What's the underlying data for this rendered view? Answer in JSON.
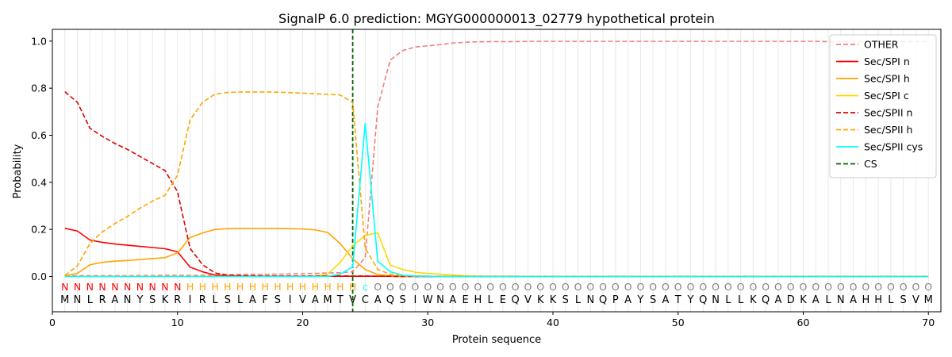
{
  "chart_data": {
    "type": "line",
    "title": "SignalP 6.0 prediction: MGYG000000013_02779 hypothetical protein",
    "xlabel": "Protein sequence",
    "ylabel": "Probability",
    "xlim": [
      0,
      71
    ],
    "ylim": [
      -0.15,
      1.05
    ],
    "xticks": [
      0,
      10,
      20,
      30,
      40,
      50,
      60,
      70
    ],
    "yticks": [
      0.0,
      0.2,
      0.4,
      0.6,
      0.8,
      1.0
    ],
    "ytick_labels": [
      "0.0",
      "0.2",
      "0.4",
      "0.6",
      "0.8",
      "1.0"
    ],
    "grid": "vertical lines at each residue",
    "legend_position": "top-right",
    "sequence": [
      "M",
      "N",
      "L",
      "R",
      "A",
      "N",
      "Y",
      "S",
      "K",
      "R",
      "I",
      "R",
      "L",
      "S",
      "L",
      "A",
      "F",
      "S",
      "I",
      "V",
      "A",
      "M",
      "T",
      "V",
      "C",
      "A",
      "Q",
      "S",
      "I",
      "W",
      "N",
      "A",
      "E",
      "H",
      "L",
      "E",
      "Q",
      "V",
      "K",
      "K",
      "S",
      "L",
      "N",
      "Q",
      "P",
      "A",
      "Y",
      "S",
      "A",
      "T",
      "Y",
      "Q",
      "N",
      "L",
      "L",
      "K",
      "Q",
      "A",
      "D",
      "K",
      "A",
      "L",
      "N",
      "A",
      "H",
      "H",
      "L",
      "S",
      "V",
      "M"
    ],
    "annotation": [
      "N",
      "N",
      "N",
      "N",
      "N",
      "N",
      "N",
      "N",
      "N",
      "N",
      "H",
      "H",
      "H",
      "H",
      "H",
      "H",
      "H",
      "H",
      "H",
      "H",
      "H",
      "H",
      "H",
      "H",
      "c",
      "O",
      "O",
      "O",
      "O",
      "O",
      "O",
      "O",
      "O",
      "O",
      "O",
      "O",
      "O",
      "O",
      "O",
      "O",
      "O",
      "O",
      "O",
      "O",
      "O",
      "O",
      "O",
      "O",
      "O",
      "O",
      "O",
      "O",
      "O",
      "O",
      "O",
      "O",
      "O",
      "O",
      "O",
      "O",
      "O",
      "O",
      "O",
      "O",
      "O",
      "O",
      "O",
      "O",
      "O",
      "O"
    ],
    "annotation_colors": {
      "N": "#ff0000",
      "H": "#ffa500",
      "c": "#00ffff",
      "O": "#808080"
    },
    "cleavage_site": 24,
    "series": [
      {
        "name": "OTHER",
        "color": "#f08080",
        "dash": "dashed",
        "values": [
          0.003,
          0.003,
          0.003,
          0.003,
          0.003,
          0.003,
          0.004,
          0.004,
          0.005,
          0.005,
          0.005,
          0.005,
          0.006,
          0.007,
          0.008,
          0.009,
          0.009,
          0.01,
          0.011,
          0.012,
          0.013,
          0.015,
          0.016,
          0.02,
          0.08,
          0.72,
          0.92,
          0.96,
          0.975,
          0.98,
          0.985,
          0.992,
          0.995,
          0.997,
          0.998,
          0.998,
          0.998,
          0.999,
          0.999,
          0.999,
          0.999,
          0.999,
          0.999,
          0.999,
          0.999,
          0.999,
          0.999,
          0.999,
          0.999,
          0.999,
          0.999,
          0.999,
          0.999,
          0.999,
          0.999,
          0.999,
          0.999,
          0.999,
          0.999,
          0.999,
          0.999,
          0.998,
          0.998,
          0.998,
          0.998,
          0.998,
          0.998,
          0.998,
          0.998,
          0.998
        ]
      },
      {
        "name": "Sec/SPI n",
        "color": "#ff0000",
        "dash": "solid",
        "values": [
          0.205,
          0.193,
          0.155,
          0.145,
          0.138,
          0.133,
          0.128,
          0.123,
          0.118,
          0.105,
          0.04,
          0.02,
          0.006,
          0.003,
          0.002,
          0.001,
          0.001,
          0.001,
          0.001,
          0.001,
          0.001,
          0.001,
          0.001,
          0.001,
          0.001,
          0.001,
          0.001,
          0,
          0,
          0,
          0,
          0,
          0,
          0,
          0,
          0,
          0,
          0,
          0,
          0,
          0,
          0,
          0,
          0,
          0,
          0,
          0,
          0,
          0,
          0,
          0,
          0,
          0,
          0,
          0,
          0,
          0,
          0,
          0,
          0,
          0,
          0,
          0,
          0,
          0,
          0,
          0,
          0,
          0,
          0
        ]
      },
      {
        "name": "Sec/SPI h",
        "color": "#ffa500",
        "dash": "solid",
        "values": [
          0.003,
          0.013,
          0.05,
          0.06,
          0.065,
          0.068,
          0.072,
          0.076,
          0.08,
          0.1,
          0.165,
          0.185,
          0.2,
          0.203,
          0.204,
          0.204,
          0.204,
          0.204,
          0.203,
          0.202,
          0.198,
          0.187,
          0.14,
          0.075,
          0.03,
          0.008,
          0.003,
          0.001,
          0.001,
          0.001,
          0,
          0,
          0,
          0,
          0,
          0,
          0,
          0,
          0,
          0,
          0,
          0,
          0,
          0,
          0,
          0,
          0,
          0,
          0,
          0,
          0,
          0,
          0,
          0,
          0,
          0,
          0,
          0,
          0,
          0,
          0,
          0,
          0,
          0,
          0,
          0,
          0,
          0,
          0,
          0
        ]
      },
      {
        "name": "Sec/SPI c",
        "color": "#ffd700",
        "dash": "solid",
        "values": [
          0,
          0,
          0,
          0,
          0,
          0,
          0,
          0,
          0,
          0,
          0,
          0,
          0,
          0,
          0,
          0,
          0,
          0,
          0,
          0.001,
          0.002,
          0.01,
          0.06,
          0.13,
          0.175,
          0.185,
          0.048,
          0.03,
          0.018,
          0.013,
          0.01,
          0.006,
          0.003,
          0.002,
          0.001,
          0.001,
          0.001,
          0,
          0,
          0,
          0,
          0,
          0,
          0,
          0,
          0,
          0,
          0,
          0,
          0,
          0,
          0,
          0,
          0,
          0,
          0,
          0,
          0,
          0,
          0,
          0,
          0,
          0,
          0,
          0,
          0,
          0,
          0,
          0,
          0
        ]
      },
      {
        "name": "Sec/SPII n",
        "color": "#dd0000",
        "dash": "dashed",
        "values": [
          0.785,
          0.74,
          0.63,
          0.595,
          0.565,
          0.54,
          0.51,
          0.48,
          0.45,
          0.36,
          0.12,
          0.05,
          0.015,
          0.006,
          0.004,
          0.003,
          0.002,
          0.002,
          0.002,
          0.002,
          0.002,
          0.002,
          0.002,
          0.002,
          0.002,
          0.001,
          0.001,
          0,
          0,
          0,
          0,
          0,
          0,
          0,
          0,
          0,
          0,
          0,
          0,
          0,
          0,
          0,
          0,
          0,
          0,
          0,
          0,
          0,
          0,
          0,
          0,
          0,
          0,
          0,
          0,
          0,
          0,
          0,
          0,
          0,
          0,
          0,
          0,
          0,
          0,
          0,
          0,
          0,
          0,
          0
        ]
      },
      {
        "name": "Sec/SPII h",
        "color": "#ffa500",
        "dash": "dashed",
        "values": [
          0.004,
          0.045,
          0.14,
          0.19,
          0.225,
          0.255,
          0.29,
          0.32,
          0.345,
          0.43,
          0.665,
          0.74,
          0.775,
          0.782,
          0.784,
          0.784,
          0.784,
          0.783,
          0.781,
          0.779,
          0.776,
          0.774,
          0.771,
          0.74,
          0.12,
          0.03,
          0.01,
          0.003,
          0.002,
          0.001,
          0,
          0,
          0,
          0,
          0,
          0,
          0,
          0,
          0,
          0,
          0,
          0,
          0,
          0,
          0,
          0,
          0,
          0,
          0,
          0,
          0,
          0,
          0,
          0,
          0,
          0,
          0,
          0,
          0,
          0,
          0,
          0,
          0,
          0,
          0,
          0,
          0,
          0,
          0,
          0
        ]
      },
      {
        "name": "Sec/SPII cys",
        "color": "#00ffff",
        "dash": "solid",
        "values": [
          0,
          0,
          0,
          0,
          0,
          0,
          0,
          0,
          0,
          0,
          0,
          0,
          0,
          0,
          0,
          0,
          0,
          0,
          0,
          0,
          0,
          0,
          0.01,
          0.04,
          0.65,
          0.065,
          0.02,
          0.005,
          0.002,
          0.001,
          0,
          0,
          0,
          0,
          0,
          0,
          0,
          0,
          0,
          0,
          0,
          0,
          0,
          0,
          0,
          0,
          0,
          0,
          0,
          0,
          0,
          0,
          0,
          0,
          0,
          0,
          0,
          0,
          0,
          0,
          0,
          0,
          0,
          0,
          0,
          0,
          0,
          0,
          0,
          0
        ]
      }
    ],
    "cs_legend": {
      "name": "CS",
      "color": "#006400",
      "dash": "dashed"
    }
  }
}
